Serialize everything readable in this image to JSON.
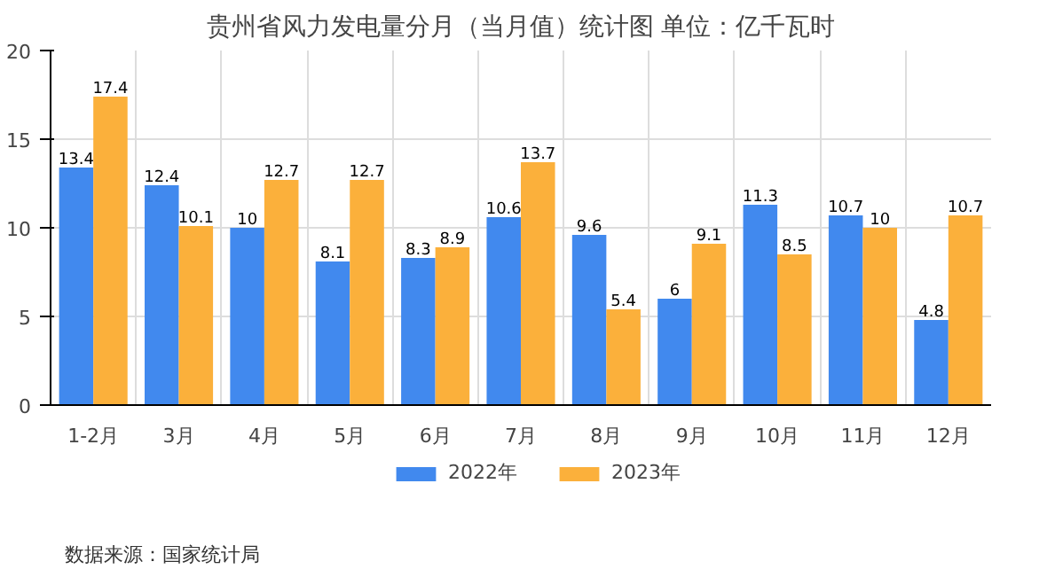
{
  "chart_data": {
    "type": "bar",
    "title": "贵州省风力发电量分月（当月值）统计图 单位：亿千瓦时",
    "categories": [
      "1-2月",
      "3月",
      "4月",
      "5月",
      "6月",
      "7月",
      "8月",
      "9月",
      "10月",
      "11月",
      "12月"
    ],
    "series": [
      {
        "name": "2022年",
        "color": "#4189ee",
        "values": [
          13.4,
          12.4,
          10,
          8.1,
          8.3,
          10.6,
          9.6,
          6,
          11.3,
          10.7,
          4.8
        ]
      },
      {
        "name": "2023年",
        "color": "#fbb03b",
        "values": [
          17.4,
          10.1,
          12.7,
          12.7,
          8.9,
          13.7,
          5.4,
          9.1,
          8.5,
          10,
          10.7
        ]
      }
    ],
    "ylim": [
      0,
      20
    ],
    "yticks": [
      0,
      5,
      10,
      15,
      20
    ],
    "grid": true,
    "legend": "bottom",
    "data_labels": true,
    "annotations": [
      "数据来源：国家统计局"
    ]
  }
}
